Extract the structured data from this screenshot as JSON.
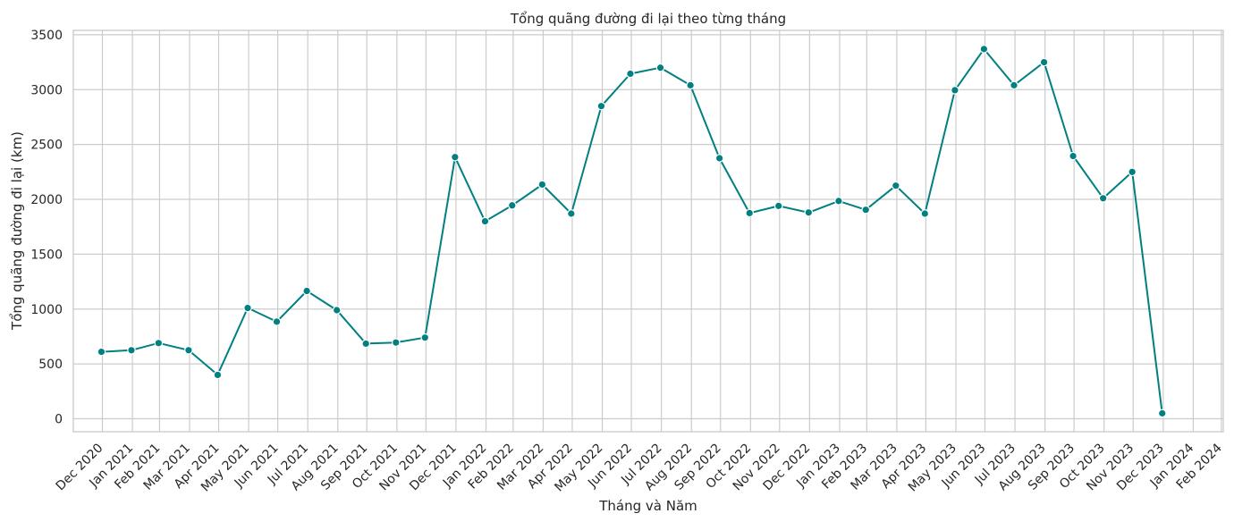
{
  "chart_data": {
    "type": "line",
    "title": "Tổng quãng đường đi lại theo từng tháng",
    "xlabel": "Tháng và Năm",
    "ylabel": "Tổng quãng đường đi lại (km)",
    "x_ticks": [
      "Dec 2020",
      "Jan 2021",
      "Feb 2021",
      "Mar 2021",
      "Apr 2021",
      "May 2021",
      "Jun 2021",
      "Jul 2021",
      "Aug 2021",
      "Sep 2021",
      "Oct 2021",
      "Nov 2021",
      "Dec 2021",
      "Jan 2022",
      "Feb 2022",
      "Mar 2022",
      "Apr 2022",
      "May 2022",
      "Jun 2022",
      "Jul 2022",
      "Aug 2022",
      "Sep 2022",
      "Oct 2022",
      "Nov 2022",
      "Dec 2022",
      "Jan 2023",
      "Feb 2023",
      "Mar 2023",
      "Apr 2023",
      "May 2023",
      "Jun 2023",
      "Jul 2023",
      "Aug 2023",
      "Sep 2023",
      "Oct 2023",
      "Nov 2023",
      "Dec 2023",
      "Jan 2024",
      "Feb 2024"
    ],
    "x": [
      "2020-12-31",
      "2021-01-31",
      "2021-02-28",
      "2021-03-31",
      "2021-04-30",
      "2021-05-31",
      "2021-06-30",
      "2021-07-31",
      "2021-08-31",
      "2021-09-30",
      "2021-10-31",
      "2021-11-30",
      "2021-12-31",
      "2022-01-31",
      "2022-02-28",
      "2022-03-31",
      "2022-04-30",
      "2022-05-31",
      "2022-06-30",
      "2022-07-31",
      "2022-08-31",
      "2022-09-30",
      "2022-10-31",
      "2022-11-30",
      "2022-12-31",
      "2023-01-31",
      "2023-02-28",
      "2023-03-31",
      "2023-04-30",
      "2023-05-31",
      "2023-06-30",
      "2023-07-31",
      "2023-08-31",
      "2023-09-30",
      "2023-10-31",
      "2023-11-30",
      "2023-12-31"
    ],
    "series": [
      {
        "values": [
          610,
          625,
          690,
          625,
          400,
          1010,
          885,
          1165,
          990,
          685,
          695,
          740,
          2385,
          1800,
          1945,
          2135,
          1870,
          2850,
          3145,
          3200,
          3040,
          2375,
          1875,
          1940,
          1880,
          1985,
          1905,
          2125,
          1870,
          2995,
          3370,
          3040,
          3250,
          2395,
          2010,
          2250,
          50
        ],
        "color": "#008080"
      }
    ],
    "y_ticks": [
      0,
      500,
      1000,
      1500,
      2000,
      2500,
      3000,
      3500
    ],
    "xlim": [
      "2020-12-02",
      "2024-03-03"
    ],
    "ylim": [
      -118,
      3540
    ],
    "grid": true,
    "legend": "none"
  }
}
